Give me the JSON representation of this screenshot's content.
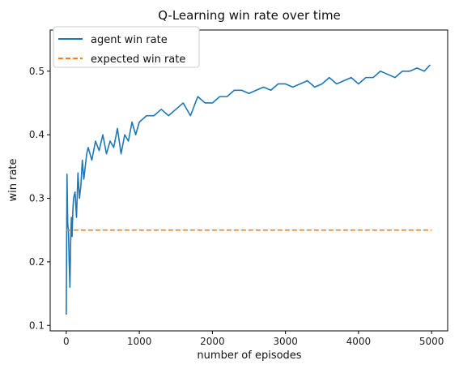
{
  "chart_data": {
    "type": "line",
    "title": "Q-Learning win rate over time",
    "xlabel": "number of episodes",
    "ylabel": "win rate",
    "xlim": [
      -220,
      5220
    ],
    "ylim": [
      0.0914,
      0.5648
    ],
    "x_ticks": [
      0,
      1000,
      2000,
      3000,
      4000,
      5000
    ],
    "x_tick_labels": [
      "0",
      "1000",
      "2000",
      "3000",
      "4000",
      "5000"
    ],
    "y_ticks": [
      0.1,
      0.2,
      0.3,
      0.4,
      0.5
    ],
    "y_tick_labels": [
      "0.1",
      "0.2",
      "0.3",
      "0.4",
      "0.5"
    ],
    "grid": false,
    "legend_position": "top-left",
    "series": [
      {
        "name": "agent win rate",
        "color": "#1f77b4",
        "style": "solid",
        "x": [
          0,
          10,
          20,
          30,
          40,
          50,
          60,
          70,
          80,
          90,
          100,
          120,
          140,
          160,
          180,
          200,
          220,
          240,
          260,
          280,
          300,
          350,
          400,
          450,
          500,
          550,
          600,
          650,
          700,
          750,
          800,
          850,
          900,
          950,
          1000,
          1100,
          1200,
          1300,
          1400,
          1500,
          1600,
          1700,
          1800,
          1900,
          2000,
          2100,
          2200,
          2300,
          2400,
          2500,
          2600,
          2700,
          2800,
          2900,
          3000,
          3100,
          3200,
          3300,
          3400,
          3500,
          3600,
          3700,
          3800,
          3900,
          4000,
          4100,
          4200,
          4300,
          4400,
          4500,
          4600,
          4700,
          4800,
          4900,
          4980
        ],
        "y": [
          0.117,
          0.338,
          0.26,
          0.25,
          0.2,
          0.16,
          0.23,
          0.27,
          0.24,
          0.28,
          0.3,
          0.31,
          0.27,
          0.34,
          0.3,
          0.32,
          0.36,
          0.33,
          0.35,
          0.37,
          0.38,
          0.36,
          0.39,
          0.375,
          0.4,
          0.37,
          0.39,
          0.38,
          0.41,
          0.37,
          0.4,
          0.39,
          0.42,
          0.4,
          0.42,
          0.43,
          0.43,
          0.44,
          0.43,
          0.44,
          0.45,
          0.43,
          0.46,
          0.45,
          0.45,
          0.46,
          0.46,
          0.47,
          0.47,
          0.465,
          0.47,
          0.475,
          0.47,
          0.48,
          0.48,
          0.475,
          0.48,
          0.485,
          0.475,
          0.48,
          0.49,
          0.48,
          0.485,
          0.49,
          0.48,
          0.49,
          0.49,
          0.5,
          0.495,
          0.49,
          0.5,
          0.5,
          0.505,
          0.5,
          0.51
        ]
      },
      {
        "name": "expected win rate",
        "color": "#ff7f0e",
        "style": "dashed",
        "x": [
          0,
          5000
        ],
        "y": [
          0.25,
          0.25
        ]
      }
    ]
  }
}
